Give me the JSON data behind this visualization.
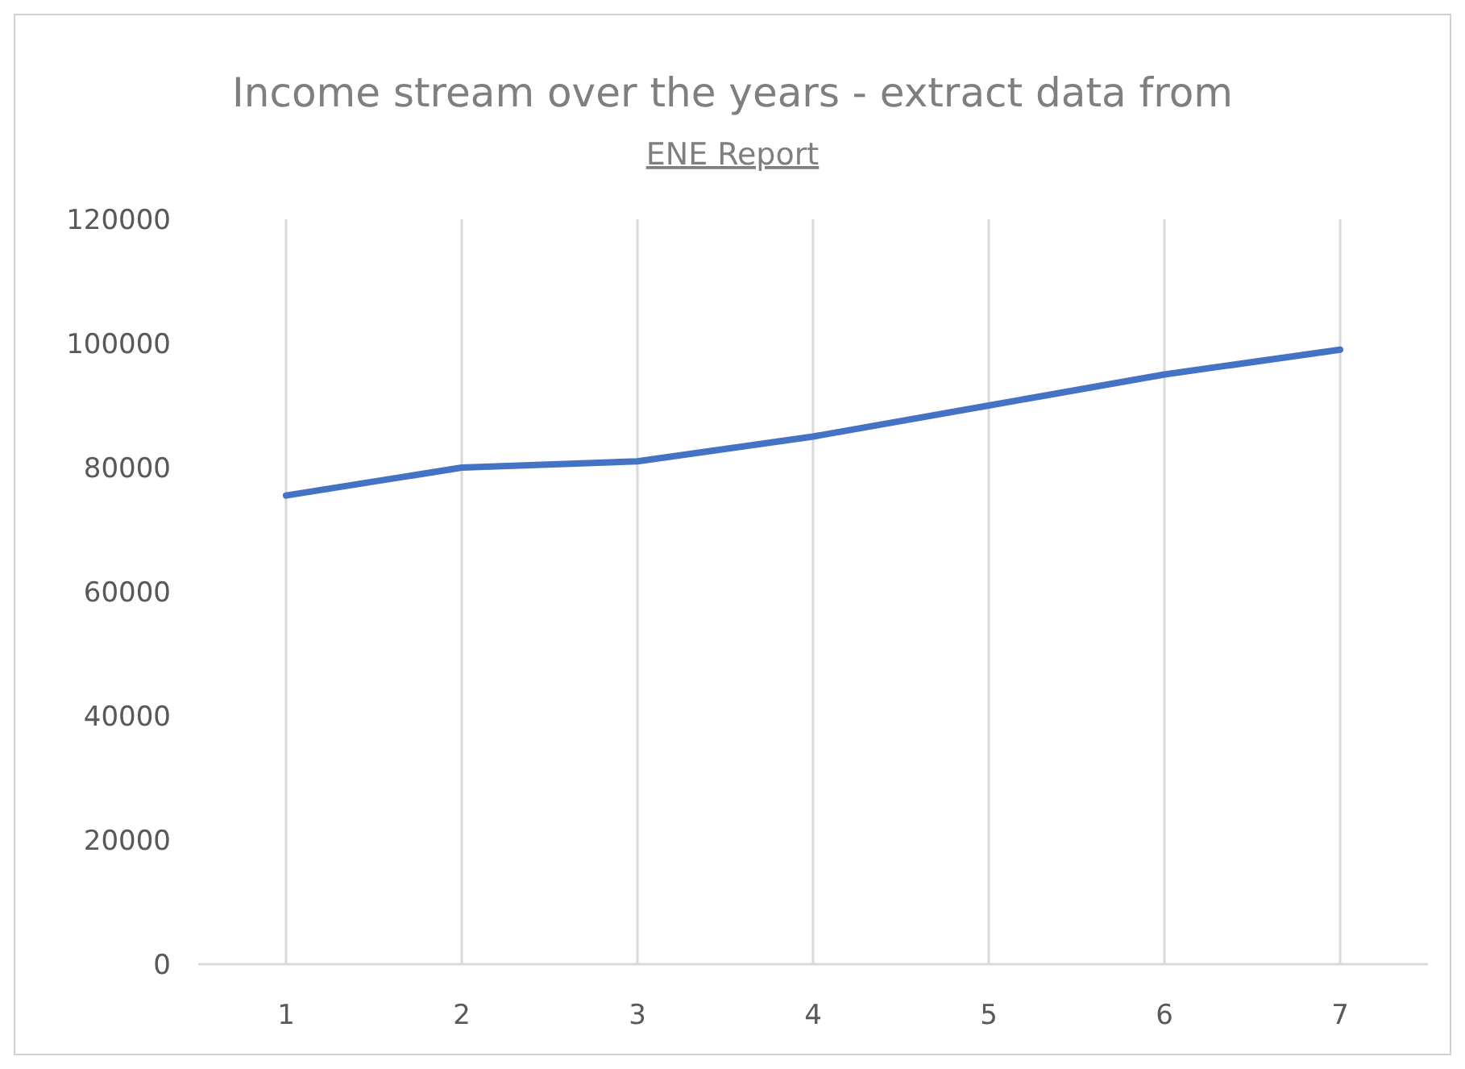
{
  "chart_data": {
    "type": "line",
    "title": "Income stream over the years - extract data from ENE Report",
    "categories": [
      "1",
      "2",
      "3",
      "4",
      "5",
      "6",
      "7"
    ],
    "series": [
      {
        "color": "#4472c4",
        "values": [
          75500,
          80000,
          81000,
          85000,
          90000,
          95000,
          99000
        ]
      }
    ],
    "ylim": [
      0,
      120000
    ],
    "yticks": [
      0,
      20000,
      40000,
      60000,
      80000,
      100000,
      120000
    ],
    "grid": "x",
    "marker": "none",
    "line_style": "solid"
  }
}
